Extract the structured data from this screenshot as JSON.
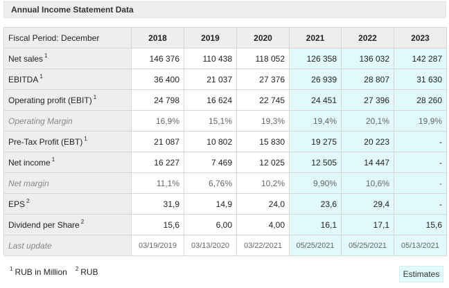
{
  "title": "Annual Income Statement Data",
  "header": {
    "label": "Fiscal Period: December",
    "years": [
      "2018",
      "2019",
      "2020",
      "2021",
      "2022",
      "2023"
    ]
  },
  "rows": [
    {
      "label": "Net sales",
      "note": "1",
      "italic": false,
      "values": [
        "146 376",
        "110 438",
        "118 052",
        "126 358",
        "136 032",
        "142 287"
      ]
    },
    {
      "label": "EBITDA",
      "note": "1",
      "italic": false,
      "values": [
        "36 400",
        "21 037",
        "27 376",
        "26 939",
        "28 807",
        "31 630"
      ]
    },
    {
      "label": "Operating profit (EBIT)",
      "note": "1",
      "italic": false,
      "values": [
        "24 798",
        "16 624",
        "22 745",
        "24 451",
        "27 396",
        "28 260"
      ]
    },
    {
      "label": "Operating Margin",
      "note": "",
      "italic": true,
      "values": [
        "16,9%",
        "15,1%",
        "19,3%",
        "19,4%",
        "20,1%",
        "19,9%"
      ]
    },
    {
      "label": "Pre-Tax Profit (EBT)",
      "note": "1",
      "italic": false,
      "values": [
        "21 087",
        "10 802",
        "15 830",
        "19 275",
        "20 223",
        "-"
      ]
    },
    {
      "label": "Net income",
      "note": "1",
      "italic": false,
      "values": [
        "16 227",
        "7 469",
        "12 025",
        "12 505",
        "14 447",
        "-"
      ]
    },
    {
      "label": "Net margin",
      "note": "",
      "italic": true,
      "values": [
        "11,1%",
        "6,76%",
        "10,2%",
        "9,90%",
        "10,6%",
        "-"
      ]
    },
    {
      "label": "EPS",
      "note": "2",
      "italic": false,
      "values": [
        "31,9",
        "14,9",
        "24,0",
        "23,6",
        "29,4",
        "-"
      ]
    },
    {
      "label": "Dividend per Share",
      "note": "2",
      "italic": false,
      "values": [
        "15,6",
        "6,00",
        "4,00",
        "16,1",
        "17,1",
        "15,6"
      ]
    }
  ],
  "last_update": {
    "label": "Last update",
    "values": [
      "03/19/2019",
      "03/13/2020",
      "03/22/2021",
      "05/25/2021",
      "05/25/2021",
      "05/13/2021"
    ]
  },
  "estimate_start_index": 3,
  "footnotes": [
    {
      "mark": "1",
      "text": "RUB in Million"
    },
    {
      "mark": "2",
      "text": "RUB"
    }
  ],
  "estimates_label": "Estimates",
  "colors": {
    "estimate_bg": "#e1f9fb",
    "label_bg": "#eeeeee"
  }
}
